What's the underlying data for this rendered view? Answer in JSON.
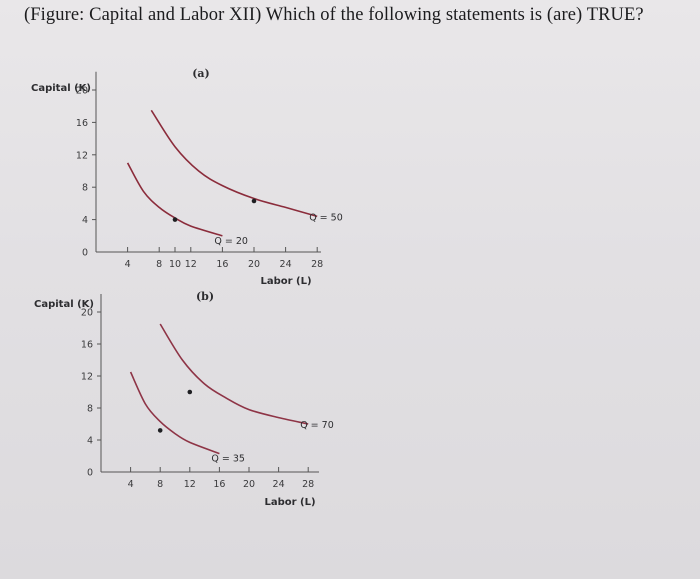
{
  "question": "(Figure: Capital and Labor XII) Which of the following statements is (are) TRUE?",
  "chart_data": [
    {
      "type": "line",
      "panel_label": "(a)",
      "xlabel": "Labor (L)",
      "ylabel": "Capital (K)",
      "x_ticks": [
        "4",
        "8",
        "10",
        "12",
        "16",
        "20",
        "24",
        "28"
      ],
      "x_tick_values": [
        4,
        8,
        10,
        12,
        16,
        20,
        24,
        28
      ],
      "y_ticks": [
        "0",
        "4",
        "8",
        "12",
        "16",
        "20"
      ],
      "y_tick_values": [
        0,
        4,
        8,
        12,
        16,
        20
      ],
      "xlim": [
        0,
        30
      ],
      "ylim": [
        0,
        22
      ],
      "series": [
        {
          "name": "Q = 20",
          "x": [
            4,
            6,
            8,
            10,
            12,
            16
          ],
          "y": [
            11,
            7.5,
            5.5,
            4.2,
            3.2,
            2
          ],
          "marked_point": [
            10,
            4
          ]
        },
        {
          "name": "Q = 50",
          "x": [
            7,
            10,
            13,
            16,
            20,
            24,
            28
          ],
          "y": [
            17.5,
            13,
            10,
            8.2,
            6.6,
            5.5,
            4.4
          ],
          "marked_point": [
            20,
            6.3
          ]
        }
      ]
    },
    {
      "type": "line",
      "panel_label": "(b)",
      "xlabel": "Labor (L)",
      "ylabel": "Capital (K)",
      "x_ticks": [
        "4",
        "8",
        "12",
        "16",
        "20",
        "24",
        "28"
      ],
      "x_tick_values": [
        4,
        8,
        12,
        16,
        20,
        24,
        28
      ],
      "y_ticks": [
        "0",
        "4",
        "8",
        "12",
        "16",
        "20"
      ],
      "y_tick_values": [
        0,
        4,
        8,
        12,
        16,
        20
      ],
      "xlim": [
        0,
        30
      ],
      "ylim": [
        0,
        22
      ],
      "series": [
        {
          "name": "Q = 35",
          "x": [
            4,
            6,
            8,
            10,
            12,
            16
          ],
          "y": [
            12.5,
            8.5,
            6.3,
            4.8,
            3.7,
            2.3
          ],
          "marked_point": [
            8,
            5.2
          ]
        },
        {
          "name": "Q = 70",
          "x": [
            8,
            11,
            14,
            17,
            20,
            24,
            28
          ],
          "y": [
            18.5,
            14,
            11,
            9.2,
            7.8,
            6.8,
            6
          ],
          "marked_point": [
            12,
            10
          ]
        }
      ]
    }
  ]
}
